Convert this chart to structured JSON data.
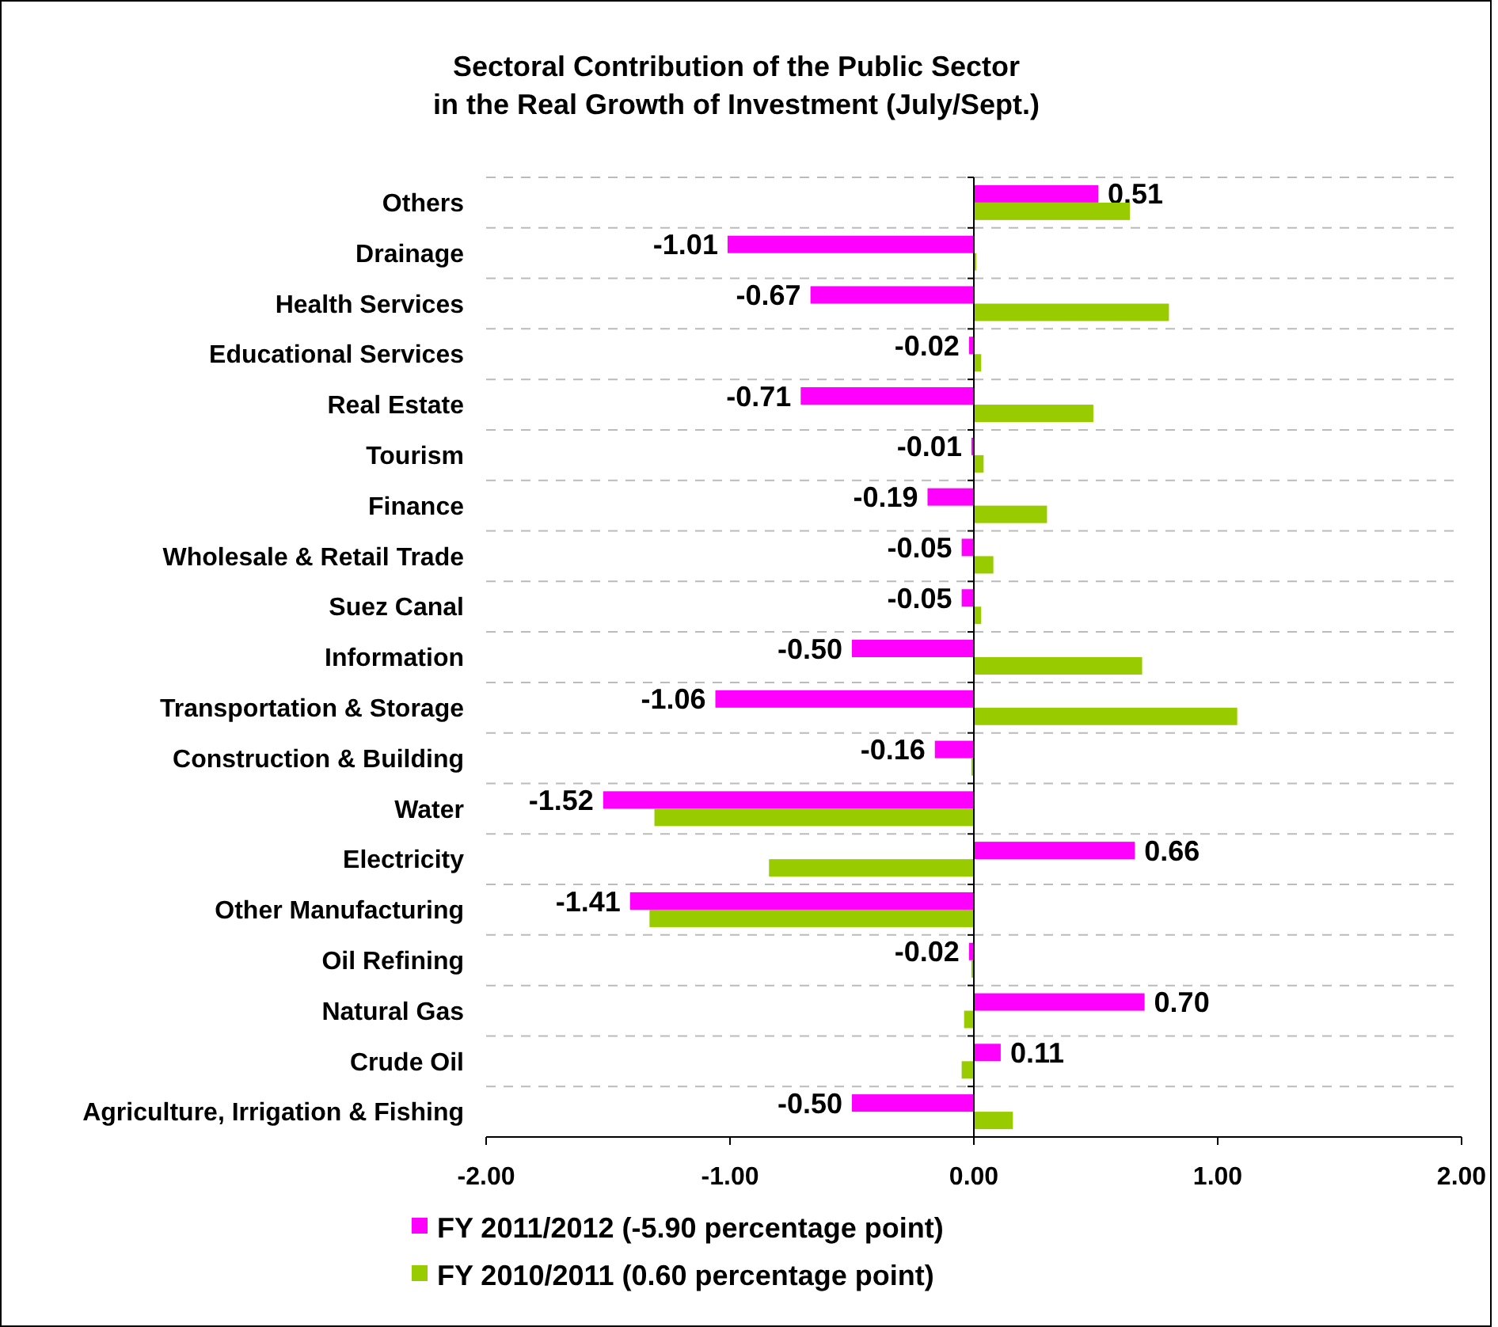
{
  "chart_data": {
    "type": "bar",
    "orientation": "horizontal",
    "title": "Sectoral Contribution of the Public Sector\nin the Real Growth of Investment (July/Sept.)",
    "categories": [
      "Others",
      "Drainage",
      "Health Services",
      "Educational Services",
      "Real Estate",
      "Tourism",
      "Finance",
      "Wholesale & Retail Trade",
      "Suez Canal",
      "Information",
      "Transportation & Storage",
      "Construction & Building",
      "Water",
      "Electricity",
      "Other Manufacturing",
      "Oil Refining",
      "Natural Gas",
      "Crude Oil",
      "Agriculture, Irrigation & Fishing"
    ],
    "series": [
      {
        "name": "FY 2011/2012 (-5.90 percentage point)",
        "color": "#ff00ff",
        "values": [
          0.51,
          -1.01,
          -0.67,
          -0.02,
          -0.71,
          -0.01,
          -0.19,
          -0.05,
          -0.05,
          -0.5,
          -1.06,
          -0.16,
          -1.52,
          0.66,
          -1.41,
          -0.02,
          0.7,
          0.11,
          -0.5
        ],
        "value_labels": [
          "0.51",
          "-1.01",
          "-0.67",
          "-0.02",
          "-0.71",
          "-0.01",
          "-0.19",
          "-0.05",
          "-0.05",
          "-0.50",
          "-1.06",
          "-0.16",
          "-1.52",
          "0.66",
          "-1.41",
          "-0.02",
          "0.70",
          "0.11",
          "-0.50"
        ]
      },
      {
        "name": "FY 2010/2011 (0.60 percentage point)",
        "color": "#99cc00",
        "values": [
          0.64,
          0.01,
          0.8,
          0.03,
          0.49,
          0.04,
          0.3,
          0.08,
          0.03,
          0.69,
          1.08,
          -0.01,
          -1.31,
          -0.84,
          -1.33,
          -0.01,
          -0.04,
          -0.05,
          0.16
        ]
      }
    ],
    "xlim": [
      -2,
      2
    ],
    "xticks": [
      {
        "value": -2,
        "label": "-2.00"
      },
      {
        "value": -1,
        "label": "-1.00"
      },
      {
        "value": 0,
        "label": "0.00"
      },
      {
        "value": 1,
        "label": "1.00"
      },
      {
        "value": 2,
        "label": "2.00"
      }
    ],
    "grid": true,
    "legend": "bottom"
  }
}
